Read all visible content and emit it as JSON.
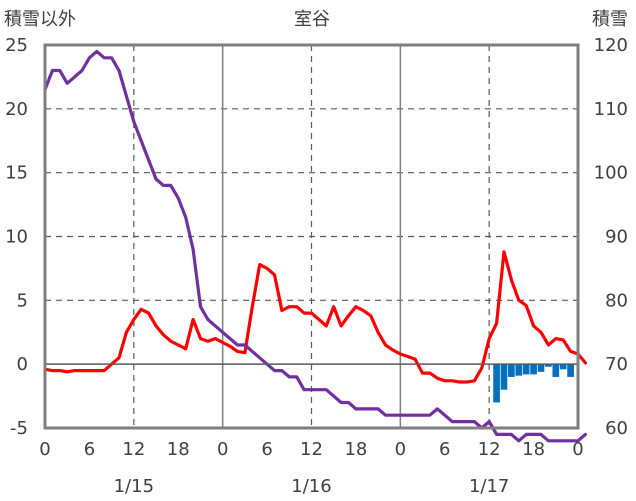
{
  "chart_data": {
    "type": "line",
    "title": "室谷",
    "left_axis_label": "積雪以外",
    "right_axis_label": "積雪",
    "ylim_left": [
      -5,
      25
    ],
    "ylim_right": [
      60,
      120
    ],
    "yticks_left": [
      -5,
      0,
      5,
      10,
      15,
      20,
      25
    ],
    "yticks_right": [
      60,
      70,
      80,
      90,
      100,
      110,
      120
    ],
    "xlim_hours": [
      0,
      72
    ],
    "xticks": [
      {
        "h": 0,
        "label": "0"
      },
      {
        "h": 6,
        "label": "6"
      },
      {
        "h": 12,
        "label": "12"
      },
      {
        "h": 18,
        "label": "18"
      },
      {
        "h": 24,
        "label": "0"
      },
      {
        "h": 30,
        "label": "6"
      },
      {
        "h": 36,
        "label": "12"
      },
      {
        "h": 42,
        "label": "18"
      },
      {
        "h": 48,
        "label": "0"
      },
      {
        "h": 54,
        "label": "6"
      },
      {
        "h": 60,
        "label": "12"
      },
      {
        "h": 66,
        "label": "18"
      },
      {
        "h": 72,
        "label": "0"
      }
    ],
    "date_labels": [
      {
        "h": 12,
        "label": "1/15"
      },
      {
        "h": 36,
        "label": "1/16"
      },
      {
        "h": 60,
        "label": "1/17"
      }
    ],
    "day_lines": [
      24,
      48
    ],
    "grid_hours": [
      12,
      36,
      60
    ],
    "grid_left_values": [
      5,
      10,
      15,
      20
    ],
    "series": [
      {
        "axis": "left",
        "color": "#ff0000",
        "points": [
          [
            0,
            -0.4
          ],
          [
            1,
            -0.5
          ],
          [
            2,
            -0.5
          ],
          [
            3,
            -0.6
          ],
          [
            4,
            -0.5
          ],
          [
            5,
            -0.5
          ],
          [
            6,
            -0.5
          ],
          [
            7,
            -0.5
          ],
          [
            8,
            -0.5
          ],
          [
            9,
            0
          ],
          [
            10,
            0.5
          ],
          [
            11,
            2.5
          ],
          [
            12,
            3.5
          ],
          [
            13,
            4.3
          ],
          [
            14,
            4
          ],
          [
            15,
            3
          ],
          [
            16,
            2.3
          ],
          [
            17,
            1.8
          ],
          [
            18,
            1.5
          ],
          [
            19,
            1.2
          ],
          [
            20,
            3.5
          ],
          [
            21,
            2
          ],
          [
            22,
            1.8
          ],
          [
            23,
            2
          ],
          [
            24,
            1.7
          ],
          [
            25,
            1.4
          ],
          [
            26,
            1
          ],
          [
            27,
            0.9
          ],
          [
            28,
            4.5
          ],
          [
            29,
            7.8
          ],
          [
            30,
            7.5
          ],
          [
            31,
            7
          ],
          [
            32,
            4.2
          ],
          [
            33,
            4.5
          ],
          [
            34,
            4.5
          ],
          [
            35,
            4
          ],
          [
            36,
            4
          ],
          [
            37,
            3.5
          ],
          [
            38,
            3
          ],
          [
            39,
            4.5
          ],
          [
            40,
            3
          ],
          [
            41,
            3.8
          ],
          [
            42,
            4.5
          ],
          [
            43,
            4.2
          ],
          [
            44,
            3.8
          ],
          [
            45,
            2.5
          ],
          [
            46,
            1.5
          ],
          [
            47,
            1.1
          ],
          [
            48,
            0.8
          ],
          [
            49,
            0.6
          ],
          [
            50,
            0.4
          ],
          [
            51,
            -0.7
          ],
          [
            52,
            -0.7
          ],
          [
            53,
            -1.1
          ],
          [
            54,
            -1.3
          ],
          [
            55,
            -1.3
          ],
          [
            56,
            -1.4
          ],
          [
            57,
            -1.4
          ],
          [
            58,
            -1.3
          ],
          [
            59,
            -0.3
          ],
          [
            60,
            2
          ],
          [
            61,
            3.2
          ],
          [
            62,
            8.8
          ],
          [
            63,
            6.6
          ],
          [
            64,
            5
          ],
          [
            65,
            4.6
          ],
          [
            66,
            3
          ],
          [
            67,
            2.5
          ],
          [
            68,
            1.5
          ],
          [
            69,
            2
          ],
          [
            70,
            1.9
          ],
          [
            71,
            1
          ],
          [
            72,
            0.8
          ],
          [
            73,
            0.1
          ]
        ]
      },
      {
        "axis": "right",
        "color": "#7030a0",
        "points": [
          [
            0,
            113
          ],
          [
            1,
            116
          ],
          [
            2,
            116
          ],
          [
            3,
            114
          ],
          [
            4,
            115
          ],
          [
            5,
            116
          ],
          [
            6,
            118
          ],
          [
            7,
            119
          ],
          [
            8,
            118
          ],
          [
            9,
            118
          ],
          [
            10,
            116
          ],
          [
            11,
            112
          ],
          [
            12,
            108
          ],
          [
            13,
            105
          ],
          [
            14,
            102
          ],
          [
            15,
            99
          ],
          [
            16,
            98
          ],
          [
            17,
            98
          ],
          [
            18,
            96
          ],
          [
            19,
            93
          ],
          [
            20,
            88
          ],
          [
            21,
            79
          ],
          [
            22,
            77
          ],
          [
            23,
            76
          ],
          [
            24,
            75
          ],
          [
            25,
            74
          ],
          [
            26,
            73
          ],
          [
            27,
            73
          ],
          [
            28,
            72
          ],
          [
            29,
            71
          ],
          [
            30,
            70
          ],
          [
            31,
            69
          ],
          [
            32,
            69
          ],
          [
            33,
            68
          ],
          [
            34,
            68
          ],
          [
            35,
            66
          ],
          [
            36,
            66
          ],
          [
            37,
            66
          ],
          [
            38,
            66
          ],
          [
            39,
            65
          ],
          [
            40,
            64
          ],
          [
            41,
            64
          ],
          [
            42,
            63
          ],
          [
            43,
            63
          ],
          [
            44,
            63
          ],
          [
            45,
            63
          ],
          [
            46,
            62
          ],
          [
            47,
            62
          ],
          [
            48,
            62
          ],
          [
            49,
            62
          ],
          [
            50,
            62
          ],
          [
            51,
            62
          ],
          [
            52,
            62
          ],
          [
            53,
            63
          ],
          [
            54,
            62
          ],
          [
            55,
            61
          ],
          [
            56,
            61
          ],
          [
            57,
            61
          ],
          [
            58,
            61
          ],
          [
            59,
            60
          ],
          [
            60,
            61
          ],
          [
            61,
            59
          ],
          [
            62,
            59
          ],
          [
            63,
            59
          ],
          [
            64,
            58
          ],
          [
            65,
            59
          ],
          [
            66,
            59
          ],
          [
            67,
            59
          ],
          [
            68,
            58
          ],
          [
            69,
            58
          ],
          [
            70,
            58
          ],
          [
            71,
            58
          ],
          [
            72,
            58
          ],
          [
            73,
            59
          ]
        ]
      }
    ],
    "precip_bars": {
      "axis": "left",
      "color": "#0070c0",
      "values": [
        [
          61,
          -3
        ],
        [
          62,
          -2
        ],
        [
          63,
          -1
        ],
        [
          64,
          -0.9
        ],
        [
          65,
          -0.8
        ],
        [
          66,
          -0.8
        ],
        [
          67,
          -0.6
        ],
        [
          68,
          -0.2
        ],
        [
          69,
          -1
        ],
        [
          70,
          -0.4
        ],
        [
          71,
          -1
        ]
      ]
    }
  }
}
